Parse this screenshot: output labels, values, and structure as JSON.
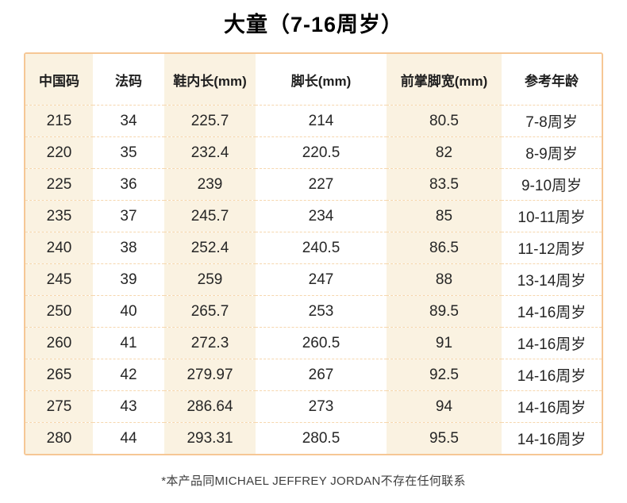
{
  "page": {
    "title": "大童（7-16周岁）",
    "footnote": "*本产品同MICHAEL JEFFREY JORDAN不存在任何联系"
  },
  "chart_data": {
    "type": "table",
    "title": "大童（7-16周岁）",
    "columns": [
      "中国码",
      "法码",
      "鞋内长(mm)",
      "脚长(mm)",
      "前掌脚宽(mm)",
      "参考年龄"
    ],
    "rows": [
      [
        "215",
        "34",
        "225.7",
        "214",
        "80.5",
        "7-8周岁"
      ],
      [
        "220",
        "35",
        "232.4",
        "220.5",
        "82",
        "8-9周岁"
      ],
      [
        "225",
        "36",
        "239",
        "227",
        "83.5",
        "9-10周岁"
      ],
      [
        "235",
        "37",
        "245.7",
        "234",
        "85",
        "10-11周岁"
      ],
      [
        "240",
        "38",
        "252.4",
        "240.5",
        "86.5",
        "11-12周岁"
      ],
      [
        "245",
        "39",
        "259",
        "247",
        "88",
        "13-14周岁"
      ],
      [
        "250",
        "40",
        "265.7",
        "253",
        "89.5",
        "14-16周岁"
      ],
      [
        "260",
        "41",
        "272.3",
        "260.5",
        "91",
        "14-16周岁"
      ],
      [
        "265",
        "42",
        "279.97",
        "267",
        "92.5",
        "14-16周岁"
      ],
      [
        "275",
        "43",
        "286.64",
        "273",
        "94",
        "14-16周岁"
      ],
      [
        "280",
        "44",
        "293.31",
        "280.5",
        "95.5",
        "14-16周岁"
      ]
    ],
    "layout": {
      "striped_columns": "odd columns (中国码, 鞋内长, 前掌脚宽) have cream background",
      "row_dividers": "dashed",
      "outer_border": "solid peach"
    }
  },
  "colors": {
    "stripe_bg": "#FAF2E1",
    "table_border": "#F6C795",
    "row_divider": "#F6D7AE",
    "title_text": "#000000",
    "body_text": "#262626",
    "footnote_text": "#3E3E3E",
    "page_bg": "#FFFFFF"
  }
}
